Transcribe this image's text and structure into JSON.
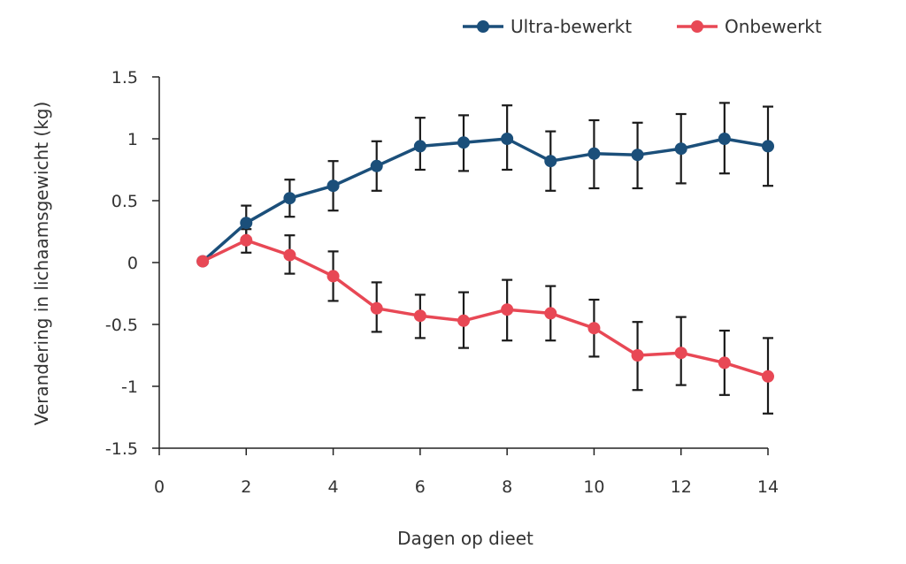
{
  "chart_data": {
    "type": "line",
    "xlabel": "Dagen op dieet",
    "ylabel": "Verandering in lichaamsgewicht  (kg)",
    "xlim": [
      0,
      14
    ],
    "ylim": [
      -1.5,
      1.5
    ],
    "x_ticks": [
      0,
      2,
      4,
      6,
      8,
      10,
      12,
      14
    ],
    "y_ticks": [
      1.5,
      1,
      0.5,
      0,
      -0.5,
      -1,
      -1.5
    ],
    "x_tick_labels": [
      "0",
      "2",
      "4",
      "6",
      "8",
      "10",
      "12",
      "14"
    ],
    "y_tick_labels": [
      "1.5",
      "1",
      "0.5",
      "0",
      "-0.5",
      "-1",
      "-1.5"
    ],
    "grid": false,
    "legend": "top-right",
    "x": [
      1,
      2,
      3,
      4,
      5,
      6,
      7,
      8,
      9,
      10,
      11,
      12,
      13,
      14
    ],
    "series": [
      {
        "name": "Ultra-bewerkt",
        "color": "#1b4f7a",
        "values": [
          0.01,
          0.32,
          0.52,
          0.62,
          0.78,
          0.94,
          0.97,
          1.0,
          0.82,
          0.88,
          0.87,
          0.92,
          1.0,
          0.94
        ],
        "error_upper": [
          null,
          0.46,
          0.67,
          0.82,
          0.98,
          1.17,
          1.19,
          1.27,
          1.06,
          1.15,
          1.13,
          1.2,
          1.29,
          1.26
        ],
        "error_lower": [
          null,
          0.2,
          0.37,
          0.42,
          0.58,
          0.75,
          0.74,
          0.75,
          0.58,
          0.6,
          0.6,
          0.64,
          0.72,
          0.62
        ]
      },
      {
        "name": "Onbewerkt",
        "color": "#e84855",
        "values": [
          0.01,
          0.18,
          0.06,
          -0.11,
          -0.37,
          -0.43,
          -0.47,
          -0.38,
          -0.41,
          -0.53,
          -0.75,
          -0.73,
          -0.81,
          -0.92
        ],
        "error_upper": [
          null,
          0.27,
          0.22,
          0.09,
          -0.16,
          -0.26,
          -0.24,
          -0.14,
          -0.19,
          -0.3,
          -0.48,
          -0.44,
          -0.55,
          -0.61
        ],
        "error_lower": [
          null,
          0.08,
          -0.09,
          -0.31,
          -0.56,
          -0.61,
          -0.69,
          -0.63,
          -0.63,
          -0.76,
          -1.03,
          -0.99,
          -1.07,
          -1.22
        ]
      }
    ]
  }
}
